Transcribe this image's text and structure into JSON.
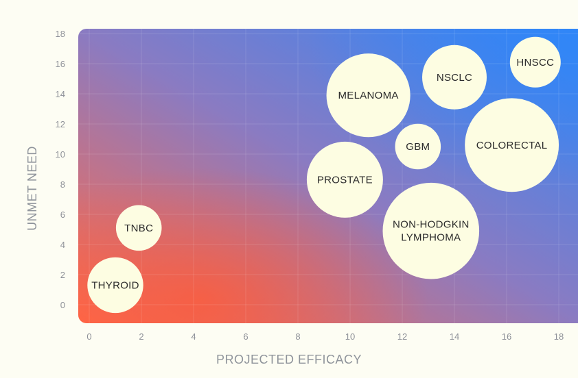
{
  "chart_data": {
    "type": "scatter",
    "xlabel": "PROJECTED EFFICACY",
    "ylabel": "UNMET NEED",
    "xlim": [
      0,
      18
    ],
    "ylim": [
      0,
      18
    ],
    "xticks": [
      0,
      2,
      4,
      6,
      8,
      10,
      12,
      14,
      16,
      18
    ],
    "yticks": [
      0,
      2,
      4,
      6,
      8,
      10,
      12,
      14,
      16,
      18
    ],
    "colors": {
      "low": "#ff6a4a",
      "mid": "#8a7bc2",
      "high": "#2f86f8",
      "bubble": "#fdfde2",
      "background": "#fdfdf3"
    },
    "points": [
      {
        "label": "THYROID",
        "x": 1.0,
        "y": 1.3,
        "size": 1.1
      },
      {
        "label": "TNBC",
        "x": 1.9,
        "y": 5.1,
        "size": 0.9
      },
      {
        "label": "PROSTATE",
        "x": 9.8,
        "y": 8.3,
        "size": 1.5
      },
      {
        "label": "GBM",
        "x": 12.6,
        "y": 10.5,
        "size": 0.9
      },
      {
        "label": "MELANOMA",
        "x": 10.7,
        "y": 13.9,
        "size": 1.65
      },
      {
        "label": "NSCLC",
        "x": 14.0,
        "y": 15.1,
        "size": 1.27
      },
      {
        "label": "HNSCC",
        "x": 17.1,
        "y": 16.1,
        "size": 1.0
      },
      {
        "label": "COLORECTAL",
        "x": 16.2,
        "y": 10.6,
        "size": 1.85
      },
      {
        "label": "NON-HODGKIN LYMPHOMA",
        "x": 13.1,
        "y": 4.9,
        "size": 1.9
      }
    ]
  }
}
